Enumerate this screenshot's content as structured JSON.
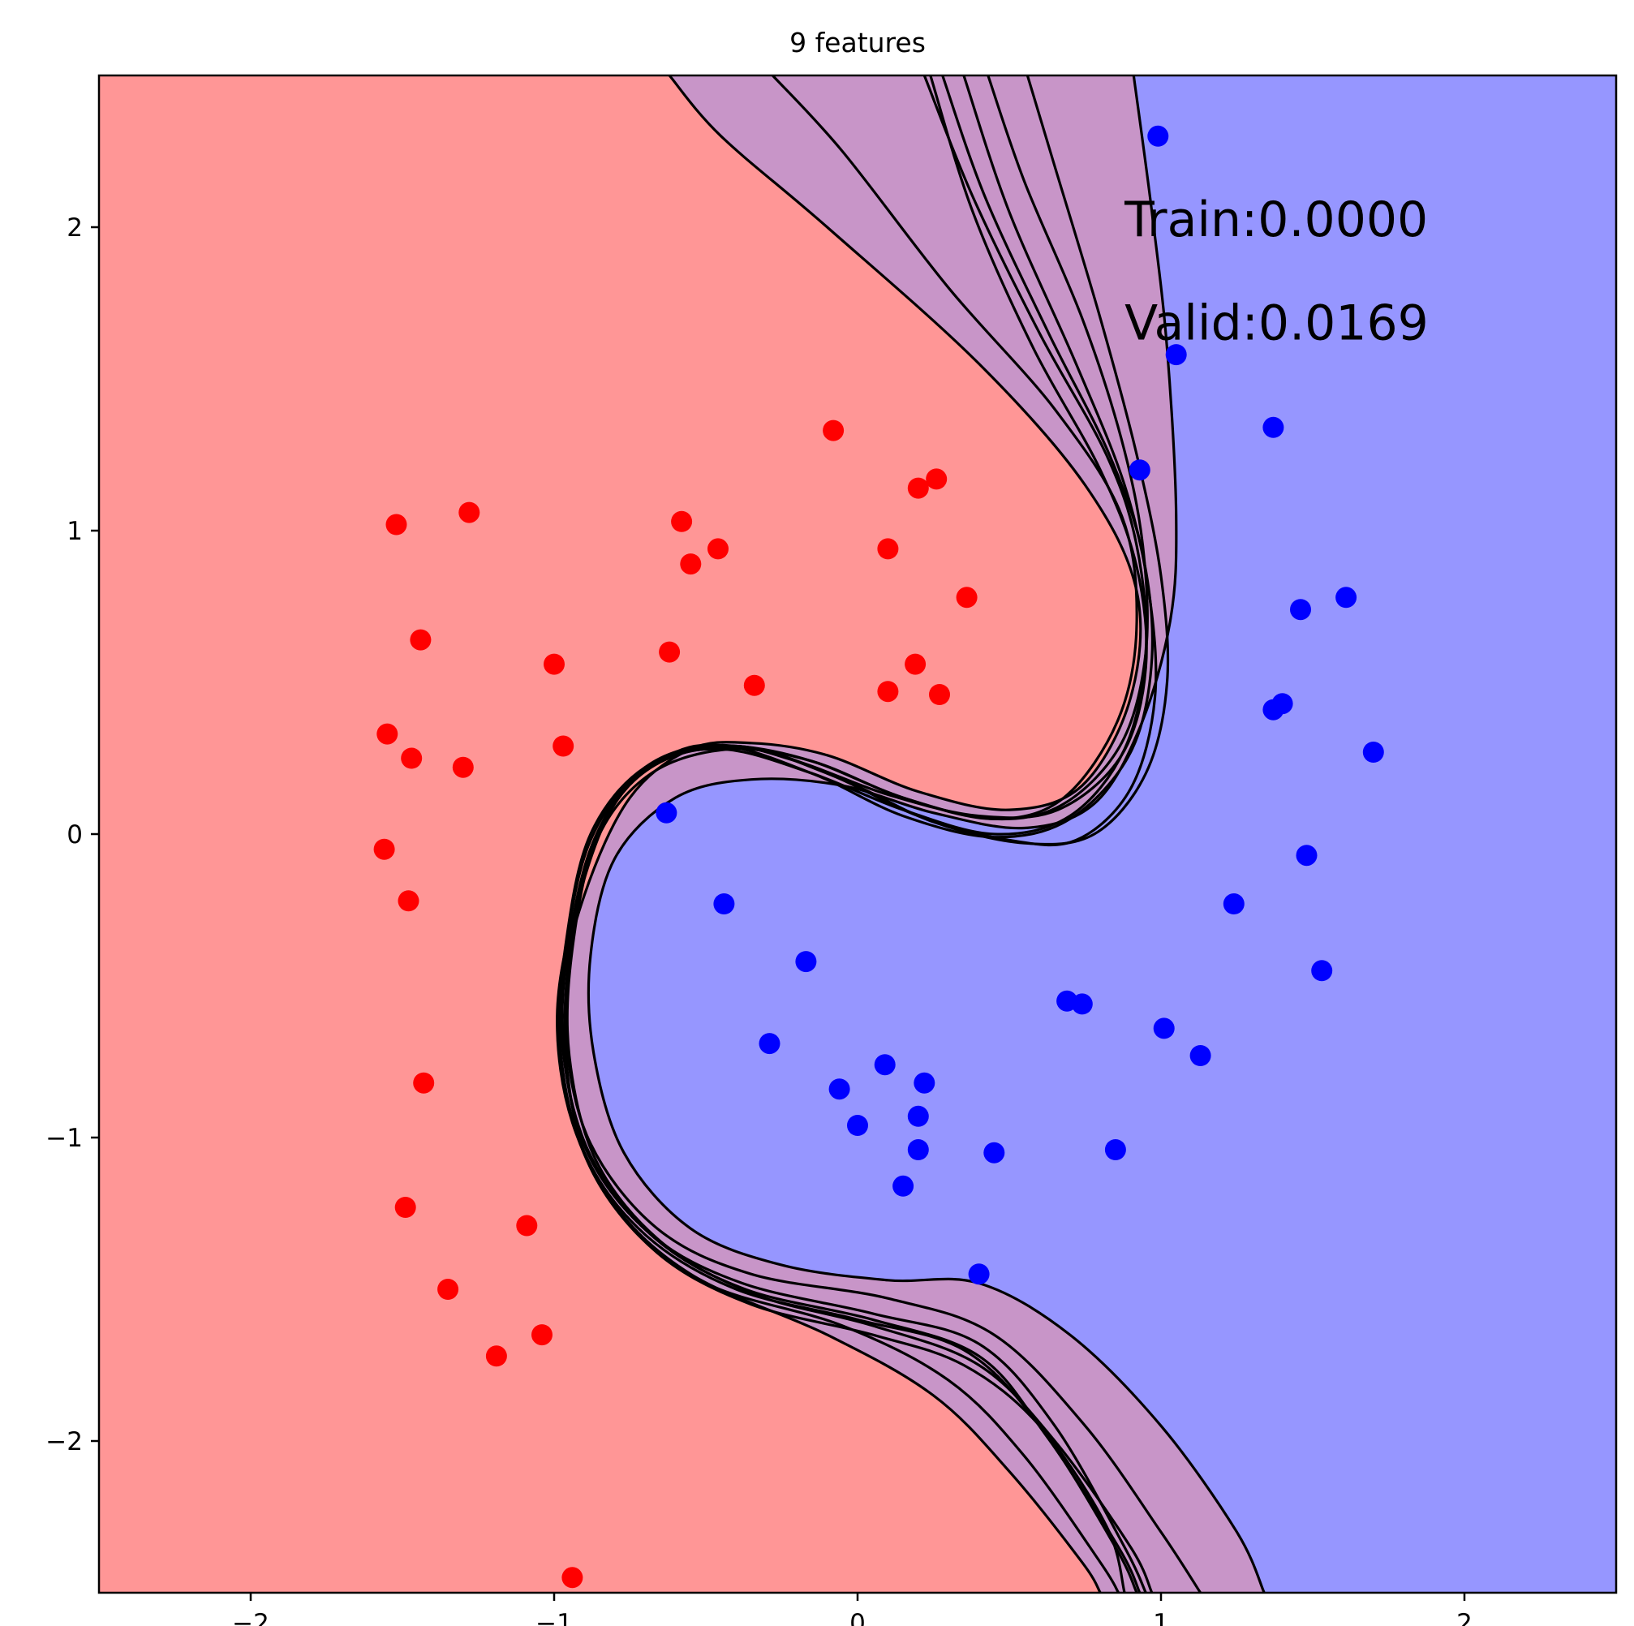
{
  "chart_data": {
    "type": "scatter",
    "title": "9 features",
    "xlabel": "",
    "ylabel": "",
    "xlim": [
      -2.5,
      2.5
    ],
    "ylim": [
      -2.5,
      2.5
    ],
    "grid": false,
    "colors": {
      "red_region": "#ff9696",
      "blue_region": "#9696ff",
      "overlap_region": "#c895c8",
      "red_points": "#ff0000",
      "blue_points": "#0000ff",
      "boundaries": "#000000"
    },
    "xticks": [
      {
        "value": -2,
        "label": "−2"
      },
      {
        "value": -1,
        "label": "−1"
      },
      {
        "value": 0,
        "label": "0"
      },
      {
        "value": 1,
        "label": "1"
      },
      {
        "value": 2,
        "label": "2"
      }
    ],
    "yticks": [
      {
        "value": 2,
        "label": "2"
      },
      {
        "value": 1,
        "label": "1"
      },
      {
        "value": 0,
        "label": "0"
      },
      {
        "value": -1,
        "label": "−1"
      },
      {
        "value": -2,
        "label": "−2"
      }
    ],
    "annotations": [
      {
        "text": "Train:0.0000",
        "x": 0.88,
        "y": 1.97
      },
      {
        "text": "Valid:0.0169",
        "x": 0.88,
        "y": 1.63
      }
    ],
    "series": [
      {
        "color": "#ff0000",
        "points": [
          [
            -1.52,
            1.02
          ],
          [
            -1.28,
            1.06
          ],
          [
            -1.44,
            0.64
          ],
          [
            -1.55,
            0.33
          ],
          [
            -1.47,
            0.25
          ],
          [
            -1.3,
            0.22
          ],
          [
            -1.56,
            -0.05
          ],
          [
            -1.48,
            -0.22
          ],
          [
            -1.43,
            -0.82
          ],
          [
            -1.49,
            -1.23
          ],
          [
            -1.35,
            -1.5
          ],
          [
            -1.19,
            -1.72
          ],
          [
            -1.09,
            -1.29
          ],
          [
            -1.04,
            -1.65
          ],
          [
            -0.94,
            -2.45
          ],
          [
            -1.0,
            0.56
          ],
          [
            -0.97,
            0.29
          ],
          [
            -0.62,
            0.6
          ],
          [
            -0.58,
            1.03
          ],
          [
            -0.55,
            0.89
          ],
          [
            -0.46,
            0.94
          ],
          [
            -0.34,
            0.49
          ],
          [
            -0.08,
            1.33
          ],
          [
            0.1,
            0.94
          ],
          [
            0.1,
            0.47
          ],
          [
            0.19,
            0.56
          ],
          [
            0.2,
            1.14
          ],
          [
            0.26,
            1.17
          ],
          [
            0.27,
            0.46
          ],
          [
            0.36,
            0.78
          ]
        ]
      },
      {
        "color": "#0000ff",
        "points": [
          [
            0.99,
            2.3
          ],
          [
            1.05,
            1.58
          ],
          [
            0.93,
            1.2
          ],
          [
            1.37,
            1.34
          ],
          [
            1.46,
            0.74
          ],
          [
            1.61,
            0.78
          ],
          [
            1.37,
            0.41
          ],
          [
            1.4,
            0.43
          ],
          [
            1.7,
            0.27
          ],
          [
            1.48,
            -0.07
          ],
          [
            1.24,
            -0.23
          ],
          [
            1.53,
            -0.45
          ],
          [
            1.01,
            -0.64
          ],
          [
            1.13,
            -0.73
          ],
          [
            0.69,
            -0.55
          ],
          [
            0.74,
            -0.56
          ],
          [
            0.85,
            -1.04
          ],
          [
            0.45,
            -1.05
          ],
          [
            0.4,
            -1.45
          ],
          [
            -0.63,
            0.07
          ],
          [
            -0.44,
            -0.23
          ],
          [
            -0.17,
            -0.42
          ],
          [
            -0.29,
            -0.69
          ],
          [
            -0.06,
            -0.84
          ],
          [
            0.0,
            -0.96
          ],
          [
            0.09,
            -0.76
          ],
          [
            0.22,
            -0.82
          ],
          [
            0.2,
            -0.93
          ],
          [
            0.2,
            -1.04
          ],
          [
            0.15,
            -1.16
          ]
        ]
      }
    ],
    "boundaries": [
      [
        [
          -0.62,
          2.5
        ],
        [
          -0.45,
          2.3
        ],
        [
          -0.1,
          2.0
        ],
        [
          0.4,
          1.55
        ],
        [
          0.75,
          1.15
        ],
        [
          0.92,
          0.8
        ],
        [
          0.9,
          0.45
        ],
        [
          0.74,
          0.16
        ],
        [
          0.5,
          0.08
        ],
        [
          0.2,
          0.14
        ],
        [
          -0.1,
          0.26
        ],
        [
          -0.35,
          0.3
        ],
        [
          -0.55,
          0.28
        ],
        [
          -0.75,
          0.12
        ],
        [
          -0.9,
          -0.2
        ],
        [
          -0.98,
          -0.55
        ],
        [
          -0.95,
          -0.9
        ],
        [
          -0.82,
          -1.2
        ],
        [
          -0.55,
          -1.45
        ],
        [
          -0.1,
          -1.65
        ],
        [
          0.25,
          -1.85
        ],
        [
          0.5,
          -2.1
        ],
        [
          0.74,
          -2.4
        ],
        [
          0.8,
          -2.5
        ]
      ],
      [
        [
          -0.28,
          2.5
        ],
        [
          -0.05,
          2.25
        ],
        [
          0.3,
          1.8
        ],
        [
          0.65,
          1.4
        ],
        [
          0.87,
          1.05
        ],
        [
          0.92,
          0.7
        ],
        [
          0.86,
          0.38
        ],
        [
          0.68,
          0.12
        ],
        [
          0.45,
          0.05
        ],
        [
          0.15,
          0.12
        ],
        [
          -0.15,
          0.24
        ],
        [
          -0.4,
          0.29
        ],
        [
          -0.6,
          0.27
        ],
        [
          -0.8,
          0.1
        ],
        [
          -0.93,
          -0.25
        ],
        [
          -0.99,
          -0.6
        ],
        [
          -0.94,
          -0.95
        ],
        [
          -0.78,
          -1.25
        ],
        [
          -0.5,
          -1.48
        ],
        [
          -0.05,
          -1.62
        ],
        [
          0.3,
          -1.8
        ],
        [
          0.55,
          -2.05
        ],
        [
          0.8,
          -2.4
        ],
        [
          0.86,
          -2.5
        ]
      ],
      [
        [
          0.22,
          2.5
        ],
        [
          0.38,
          2.1
        ],
        [
          0.6,
          1.65
        ],
        [
          0.82,
          1.25
        ],
        [
          0.92,
          0.95
        ],
        [
          0.95,
          0.6
        ],
        [
          0.88,
          0.28
        ],
        [
          0.7,
          0.06
        ],
        [
          0.45,
          0.0
        ],
        [
          0.15,
          0.08
        ],
        [
          -0.15,
          0.2
        ],
        [
          -0.45,
          0.28
        ],
        [
          -0.7,
          0.22
        ],
        [
          -0.88,
          0.0
        ],
        [
          -0.96,
          -0.35
        ],
        [
          -0.98,
          -0.7
        ],
        [
          -0.9,
          -1.05
        ],
        [
          -0.7,
          -1.32
        ],
        [
          -0.4,
          -1.5
        ],
        [
          0.0,
          -1.6
        ],
        [
          0.35,
          -1.7
        ],
        [
          0.6,
          -1.95
        ],
        [
          0.85,
          -2.35
        ],
        [
          0.92,
          -2.5
        ]
      ],
      [
        [
          0.35,
          2.5
        ],
        [
          0.5,
          2.05
        ],
        [
          0.72,
          1.55
        ],
        [
          0.88,
          1.15
        ],
        [
          0.96,
          0.8
        ],
        [
          0.98,
          0.45
        ],
        [
          0.9,
          0.15
        ],
        [
          0.72,
          -0.02
        ],
        [
          0.5,
          -0.02
        ],
        [
          0.2,
          0.06
        ],
        [
          -0.1,
          0.2
        ],
        [
          -0.4,
          0.29
        ],
        [
          -0.68,
          0.22
        ],
        [
          -0.86,
          0.0
        ],
        [
          -0.95,
          -0.35
        ],
        [
          -0.97,
          -0.7
        ],
        [
          -0.89,
          -1.05
        ],
        [
          -0.68,
          -1.32
        ],
        [
          -0.38,
          -1.48
        ],
        [
          0.05,
          -1.58
        ],
        [
          0.4,
          -1.68
        ],
        [
          0.65,
          -1.95
        ],
        [
          0.88,
          -2.35
        ],
        [
          0.95,
          -2.5
        ]
      ],
      [
        [
          0.56,
          2.5
        ],
        [
          0.65,
          2.2
        ],
        [
          0.8,
          1.7
        ],
        [
          0.92,
          1.25
        ],
        [
          1.0,
          0.85
        ],
        [
          1.02,
          0.5
        ],
        [
          0.95,
          0.2
        ],
        [
          0.78,
          0.0
        ],
        [
          0.55,
          -0.03
        ],
        [
          0.25,
          0.04
        ],
        [
          -0.05,
          0.18
        ],
        [
          -0.35,
          0.28
        ],
        [
          -0.65,
          0.24
        ],
        [
          -0.85,
          0.02
        ],
        [
          -0.94,
          -0.33
        ],
        [
          -0.96,
          -0.68
        ],
        [
          -0.88,
          -1.02
        ],
        [
          -0.66,
          -1.3
        ],
        [
          -0.35,
          -1.45
        ],
        [
          0.1,
          -1.53
        ],
        [
          0.45,
          -1.65
        ],
        [
          0.75,
          -1.95
        ],
        [
          1.0,
          -2.3
        ],
        [
          1.13,
          -2.5
        ]
      ],
      [
        [
          0.43,
          2.5
        ],
        [
          0.55,
          2.15
        ],
        [
          0.74,
          1.7
        ],
        [
          0.87,
          1.3
        ],
        [
          0.94,
          0.95
        ],
        [
          0.95,
          0.6
        ],
        [
          0.87,
          0.3
        ],
        [
          0.68,
          0.1
        ],
        [
          0.45,
          0.05
        ],
        [
          0.15,
          0.12
        ],
        [
          -0.15,
          0.24
        ],
        [
          -0.42,
          0.28
        ],
        [
          -0.68,
          0.2
        ],
        [
          -0.86,
          -0.02
        ],
        [
          -0.94,
          -0.38
        ],
        [
          -0.95,
          -0.73
        ],
        [
          -0.86,
          -1.08
        ],
        [
          -0.64,
          -1.35
        ],
        [
          -0.33,
          -1.52
        ],
        [
          0.05,
          -1.62
        ],
        [
          0.4,
          -1.75
        ],
        [
          0.65,
          -2.0
        ],
        [
          0.9,
          -2.35
        ],
        [
          0.97,
          -2.5
        ]
      ],
      [
        [
          0.91,
          2.5
        ],
        [
          0.97,
          2.05
        ],
        [
          1.02,
          1.6
        ],
        [
          1.05,
          1.05
        ],
        [
          1.03,
          0.7
        ],
        [
          0.93,
          0.35
        ],
        [
          0.78,
          0.1
        ],
        [
          0.55,
          0.02
        ],
        [
          0.25,
          0.07
        ],
        [
          -0.05,
          0.16
        ],
        [
          -0.35,
          0.18
        ],
        [
          -0.6,
          0.12
        ],
        [
          -0.8,
          -0.08
        ],
        [
          -0.88,
          -0.4
        ],
        [
          -0.87,
          -0.72
        ],
        [
          -0.77,
          -1.05
        ],
        [
          -0.55,
          -1.3
        ],
        [
          -0.25,
          -1.42
        ],
        [
          0.1,
          -1.47
        ],
        [
          0.4,
          -1.48
        ],
        [
          0.7,
          -1.65
        ],
        [
          1.0,
          -1.95
        ],
        [
          1.25,
          -2.3
        ],
        [
          1.34,
          -2.5
        ]
      ],
      [
        [
          0.24,
          2.5
        ],
        [
          0.38,
          2.05
        ],
        [
          0.58,
          1.6
        ],
        [
          0.8,
          1.2
        ],
        [
          0.92,
          0.88
        ],
        [
          0.95,
          0.55
        ],
        [
          0.87,
          0.26
        ],
        [
          0.66,
          0.08
        ],
        [
          0.4,
          0.06
        ],
        [
          0.1,
          0.13
        ],
        [
          -0.2,
          0.24
        ],
        [
          -0.45,
          0.29
        ],
        [
          -0.72,
          0.2
        ],
        [
          -0.88,
          -0.05
        ],
        [
          -0.95,
          -0.4
        ],
        [
          -0.96,
          -0.75
        ],
        [
          -0.88,
          -1.1
        ],
        [
          -0.66,
          -1.38
        ],
        [
          -0.35,
          -1.55
        ],
        [
          0.05,
          -1.65
        ],
        [
          0.35,
          -1.75
        ],
        [
          0.6,
          -1.95
        ],
        [
          0.82,
          -2.28
        ],
        [
          0.88,
          -2.5
        ]
      ],
      [
        [
          0.28,
          2.5
        ],
        [
          0.42,
          2.1
        ],
        [
          0.63,
          1.65
        ],
        [
          0.83,
          1.25
        ],
        [
          0.94,
          0.92
        ],
        [
          0.97,
          0.58
        ],
        [
          0.9,
          0.27
        ],
        [
          0.7,
          0.05
        ],
        [
          0.45,
          -0.01
        ],
        [
          0.15,
          0.06
        ],
        [
          -0.15,
          0.2
        ],
        [
          -0.45,
          0.29
        ],
        [
          -0.7,
          0.22
        ],
        [
          -0.88,
          -0.02
        ],
        [
          -0.96,
          -0.38
        ],
        [
          -0.97,
          -0.72
        ],
        [
          -0.88,
          -1.06
        ],
        [
          -0.67,
          -1.33
        ],
        [
          -0.37,
          -1.5
        ],
        [
          0.05,
          -1.6
        ],
        [
          0.4,
          -1.72
        ],
        [
          0.62,
          -1.98
        ],
        [
          0.86,
          -2.35
        ],
        [
          0.93,
          -2.5
        ]
      ]
    ]
  }
}
